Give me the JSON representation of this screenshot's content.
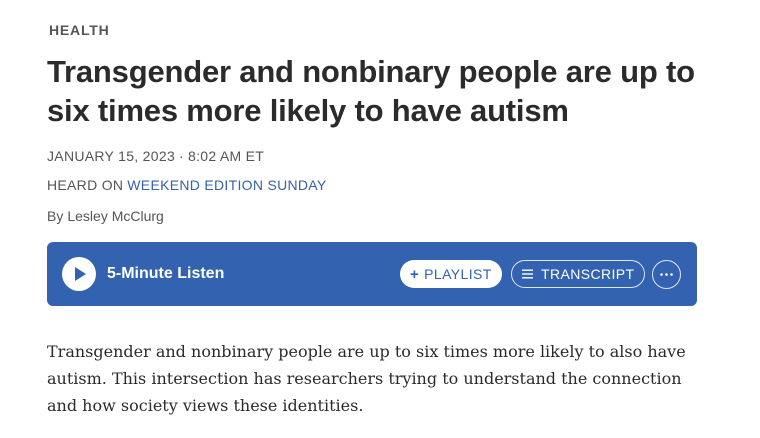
{
  "section": {
    "label": "HEALTH"
  },
  "article": {
    "headline": "Transgender and nonbinary people are up to six times more likely to have autism",
    "date": "JANUARY 15, 2023",
    "separator": "·",
    "time": "8:02 AM ET",
    "heard_on_prefix": "HEARD ON",
    "program": "WEEKEND EDITION SUNDAY",
    "byline_prefix": "By",
    "author": "Lesley McClurg",
    "teaser": "Transgender and nonbinary people are up to six times more likely to also have autism. This intersection has researchers trying to understand the connection and how society views these identities."
  },
  "player": {
    "listen_label": "5-Minute Listen",
    "play_icon": "play-icon",
    "playlist_label": "PLAYLIST",
    "playlist_icon": "plus-icon",
    "transcript_label": "TRANSCRIPT",
    "transcript_icon": "list-icon",
    "more_icon": "more-icon",
    "background_color": "#3262b0"
  },
  "colors": {
    "link": "#3762a6",
    "text": "#2b2b2b",
    "meta": "#555555"
  }
}
